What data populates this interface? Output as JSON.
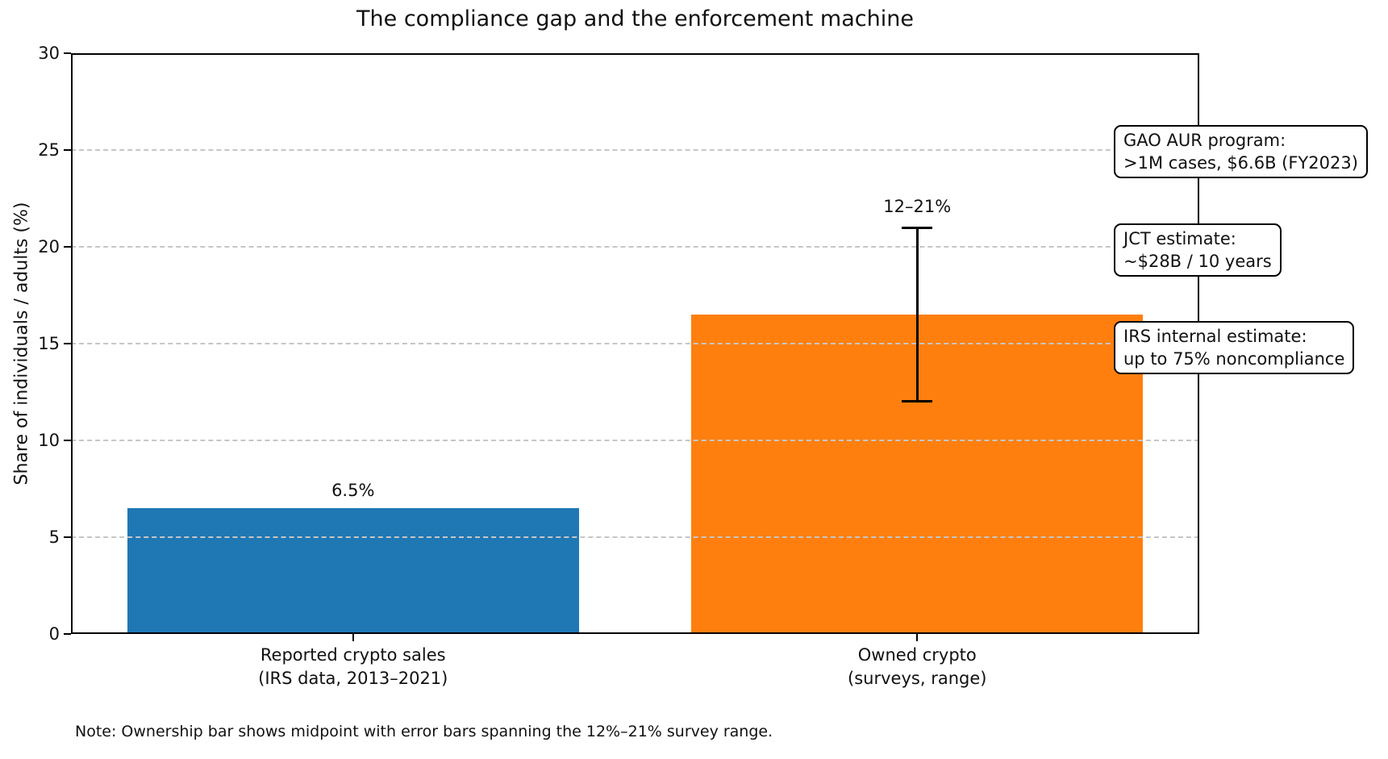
{
  "chart_data": {
    "type": "bar",
    "title": "The compliance gap and the enforcement machine",
    "ylabel": "Share of individuals / adults (%)",
    "xlabel": "",
    "ylim": [
      0,
      30
    ],
    "yticks": [
      0,
      5,
      10,
      15,
      20,
      25,
      30
    ],
    "grid": {
      "axis": "y",
      "style": "dashed",
      "color": "#c6c6c6",
      "drawn_above_bars": true
    },
    "categories": [
      "Reported crypto sales\n(IRS data, 2013–2021)",
      "Owned crypto\n(surveys, range)"
    ],
    "values": [
      6.5,
      16.5
    ],
    "bar_colors": [
      "#1f77b4",
      "#ff7f0e"
    ],
    "bar_value_labels": [
      "6.5%",
      "12–21%"
    ],
    "error_bar": {
      "series_index": 1,
      "low": 12,
      "high": 21,
      "color": "#000000"
    },
    "annotations": [
      "GAO AUR program:\n>1M cases, $6.6B (FY2023)",
      "JCT estimate:\n~$28B / 10 years",
      "IRS internal estimate:\nup to 75% noncompliance"
    ],
    "note": "Note: Ownership bar shows midpoint with error bars spanning the 12%–21% survey range."
  }
}
